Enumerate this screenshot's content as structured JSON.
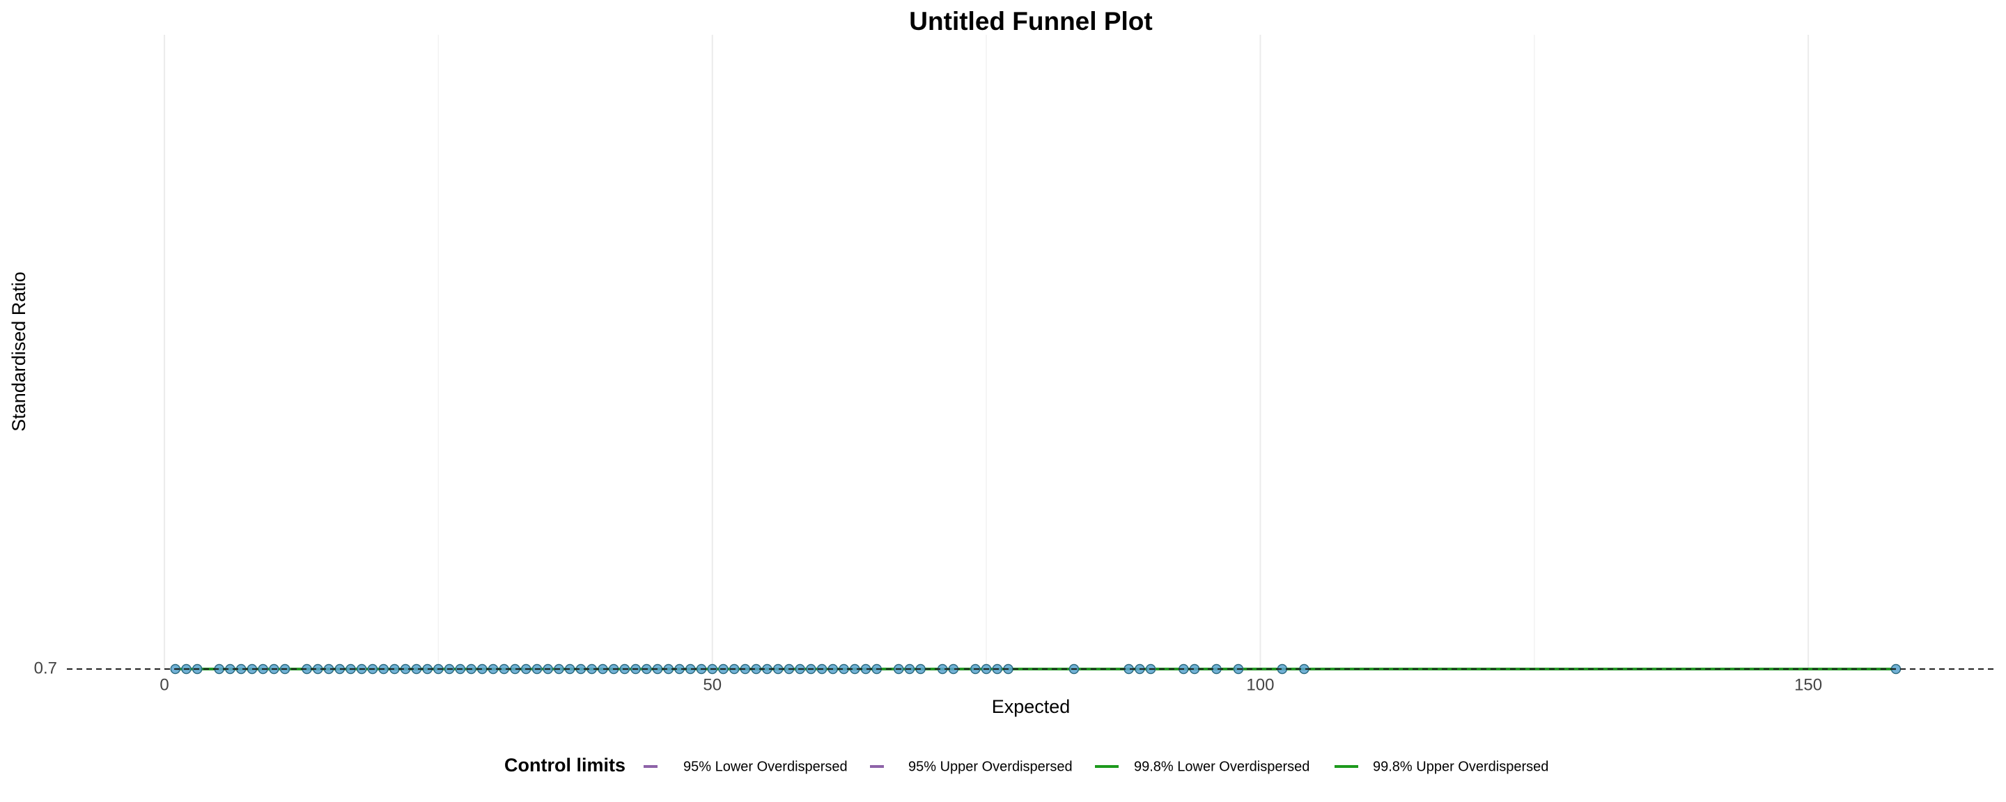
{
  "chart_data": {
    "type": "funnel",
    "title": "Untitled Funnel Plot",
    "xlabel": "Expected",
    "ylabel": "Standardised Ratio",
    "legend_title": "Control limits",
    "legend_position": "bottom",
    "xlim": [
      -8.9,
      166.9
    ],
    "xticks": [
      0,
      50,
      100,
      150
    ],
    "minor_xticks": [
      25,
      75,
      125
    ],
    "ylim": [
      0.7,
      0.8
    ],
    "yticks": [
      0.7
    ],
    "grid": true,
    "target": 0.7,
    "points": {
      "color": "#5ba3d0",
      "edge_color": "#2c6b7f",
      "x": [
        1,
        2,
        3,
        5,
        6,
        7,
        8,
        9,
        10,
        11,
        13,
        14,
        15,
        16,
        17,
        18,
        19,
        20,
        21,
        22,
        23,
        24,
        25,
        26,
        27,
        28,
        29,
        30,
        31,
        32,
        33,
        34,
        35,
        36,
        37,
        38,
        39,
        40,
        41,
        42,
        43,
        44,
        45,
        46,
        47,
        48,
        49,
        50,
        51,
        52,
        53,
        54,
        55,
        56,
        57,
        58,
        59,
        60,
        61,
        62,
        63,
        64,
        65,
        67,
        68,
        69,
        71,
        72,
        74,
        75,
        76,
        77,
        83,
        88,
        89,
        90,
        93,
        94,
        96,
        98,
        102,
        104,
        158
      ],
      "values": [
        0.7,
        0.7,
        0.7,
        0.7,
        0.7,
        0.7,
        0.7,
        0.7,
        0.7,
        0.7,
        0.7,
        0.7,
        0.7,
        0.7,
        0.7,
        0.7,
        0.7,
        0.7,
        0.7,
        0.7,
        0.7,
        0.7,
        0.7,
        0.7,
        0.7,
        0.7,
        0.7,
        0.7,
        0.7,
        0.7,
        0.7,
        0.7,
        0.7,
        0.7,
        0.7,
        0.7,
        0.7,
        0.7,
        0.7,
        0.7,
        0.7,
        0.7,
        0.7,
        0.7,
        0.7,
        0.7,
        0.7,
        0.7,
        0.7,
        0.7,
        0.7,
        0.7,
        0.7,
        0.7,
        0.7,
        0.7,
        0.7,
        0.7,
        0.7,
        0.7,
        0.7,
        0.7,
        0.7,
        0.7,
        0.7,
        0.7,
        0.7,
        0.7,
        0.7,
        0.7,
        0.7,
        0.7,
        0.7,
        0.7,
        0.7,
        0.7,
        0.7,
        0.7,
        0.7,
        0.7,
        0.7,
        0.7,
        0.7
      ]
    },
    "series": [
      {
        "name": "95% Lower Overdispersed",
        "color": "#8e63a8",
        "dash": true,
        "x": [
          1,
          158
        ],
        "values": [
          0.7,
          0.7
        ]
      },
      {
        "name": "95% Upper Overdispersed",
        "color": "#8e63a8",
        "dash": true,
        "x": [
          1,
          158
        ],
        "values": [
          0.7,
          0.7
        ]
      },
      {
        "name": "99.8% Lower Overdispersed",
        "color": "#1d9a1d",
        "dash": false,
        "x": [
          1,
          158
        ],
        "values": [
          0.7,
          0.7
        ]
      },
      {
        "name": "99.8% Upper Overdispersed",
        "color": "#1d9a1d",
        "dash": false,
        "x": [
          1,
          158
        ],
        "values": [
          0.7,
          0.7
        ]
      }
    ]
  }
}
